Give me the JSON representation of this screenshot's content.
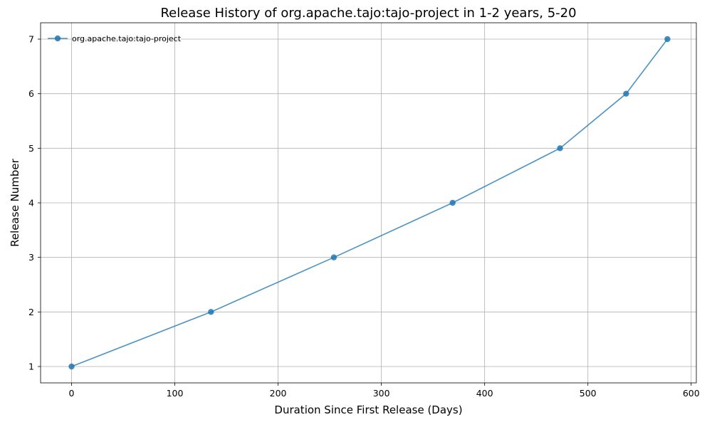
{
  "chart_data": {
    "type": "line",
    "title": "Release History of org.apache.tajo:tajo-project in 1-2 years, 5-20",
    "xlabel": "Duration Since First Release (Days)",
    "ylabel": "Release Number",
    "xlim": [
      -30,
      605
    ],
    "ylim": [
      0.7,
      7.3
    ],
    "xticks": [
      0,
      100,
      200,
      300,
      400,
      500,
      600
    ],
    "yticks": [
      1,
      2,
      3,
      4,
      5,
      6,
      7
    ],
    "grid": true,
    "legend_position": "top-left",
    "series": [
      {
        "name": "org.apache.tajo:tajo-project",
        "color": "#1f77b4",
        "marker": "circle",
        "x": [
          0,
          135,
          254,
          369,
          473,
          537,
          577
        ],
        "y": [
          1,
          2,
          3,
          4,
          5,
          6,
          7
        ]
      }
    ]
  }
}
